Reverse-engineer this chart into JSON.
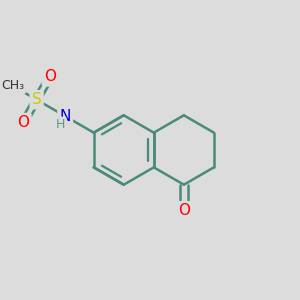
{
  "bg_color": "#dcdcdc",
  "bond_color": "#4a8a7a",
  "bond_width": 1.8,
  "atom_colors": {
    "O": "#ff0000",
    "N": "#0000cd",
    "S": "#cccc00",
    "H_color": "#5a9a8a"
  },
  "font_size": 11,
  "font_size_small": 9
}
